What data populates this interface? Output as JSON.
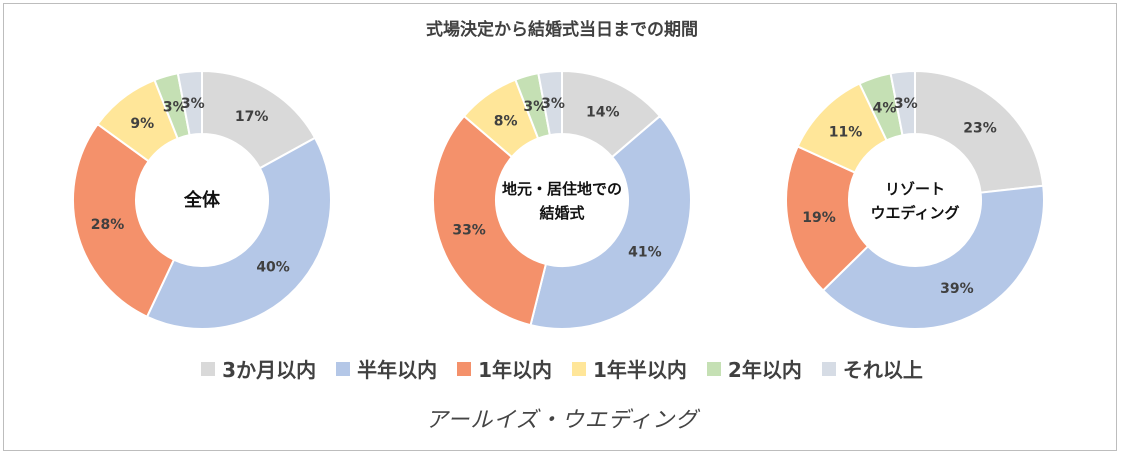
{
  "chart_data": {
    "type": "donut",
    "title": "式場決定から結婚式当日までの期間",
    "categories": [
      "3か月以内",
      "半年以内",
      "1年以内",
      "1年半以内",
      "2年以内",
      "それ以上"
    ],
    "colors": [
      "#d9d9d9",
      "#b4c7e7",
      "#f4916b",
      "#ffe699",
      "#c5e0b4",
      "#d6dce5"
    ],
    "charts": [
      {
        "name": "全体",
        "center_lines": [
          "全体"
        ],
        "values": [
          17,
          40,
          28,
          9,
          3,
          3
        ]
      },
      {
        "name": "地元・居住地での結婚式",
        "center_lines": [
          "地元・居住地での",
          "結婚式"
        ],
        "values": [
          14,
          41,
          33,
          8,
          3,
          3
        ]
      },
      {
        "name": "リゾートウエディング",
        "center_lines": [
          "リゾート",
          "ウエディング"
        ],
        "values": [
          23,
          39,
          19,
          11,
          4,
          3
        ]
      }
    ],
    "value_suffix": "%",
    "legend_position": "bottom"
  },
  "footer": {
    "brand": "アールイズ・ウエディング"
  }
}
